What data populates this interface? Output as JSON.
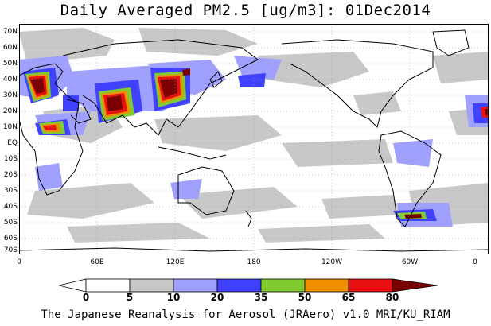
{
  "title": "Daily Averaged PM2.5 [ug/m3]: 01Dec2014",
  "footer": "The Japanese Reanalysis for Aerosol (JRAero) v1.0 MRI/KU_RIAM",
  "lat_labels": [
    "70N",
    "60N",
    "50N",
    "40N",
    "30N",
    "20N",
    "10N",
    "EQ",
    "10S",
    "20S",
    "30S",
    "40S",
    "50S",
    "60S",
    "70S"
  ],
  "lon_labels": [
    "0",
    "60E",
    "120E",
    "180",
    "120W",
    "60W",
    "0"
  ],
  "colorbar": {
    "levels": [
      "0",
      "5",
      "10",
      "20",
      "35",
      "50",
      "65",
      "80"
    ],
    "colors": [
      "#ffffff",
      "#c8c8c8",
      "#a0a0ff",
      "#4040ff",
      "#80cc30",
      "#f09000",
      "#e81010",
      "#780000"
    ]
  }
}
